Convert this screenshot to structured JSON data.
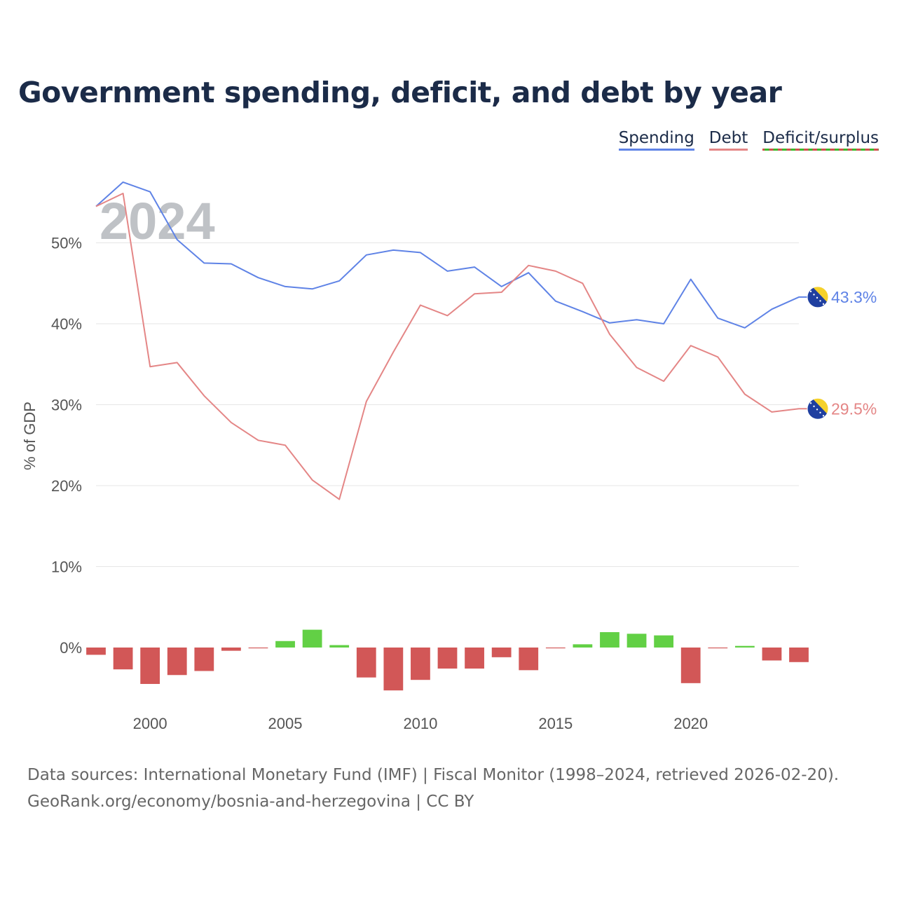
{
  "title": "Government spending, deficit, and debt by year",
  "legend": {
    "spending": "Spending",
    "debt": "Debt",
    "deficit": "Deficit/surplus"
  },
  "colors": {
    "spending": "#5f83e6",
    "debt": "#e48686",
    "surplus": "#62d045",
    "deficit": "#d25757",
    "title": "#1b2b48",
    "year_watermark": "#bfc2c6"
  },
  "chart_data": {
    "type": "line",
    "year_label": "2024",
    "ylabel": "% of GDP",
    "ylim": [
      -8,
      60
    ],
    "xlim": [
      1998,
      2024
    ],
    "x_ticks": [
      2000,
      2005,
      2010,
      2015,
      2020
    ],
    "y_ticks": [
      {
        "value": 0,
        "label": "0%"
      },
      {
        "value": 10,
        "label": "10%"
      },
      {
        "value": 20,
        "label": "20%"
      },
      {
        "value": 30,
        "label": "30%"
      },
      {
        "value": 40,
        "label": "40%"
      },
      {
        "value": 50,
        "label": "50%"
      }
    ],
    "x": [
      1998,
      1999,
      2000,
      2001,
      2002,
      2003,
      2004,
      2005,
      2006,
      2007,
      2008,
      2009,
      2010,
      2011,
      2012,
      2013,
      2014,
      2015,
      2016,
      2017,
      2018,
      2019,
      2020,
      2021,
      2022,
      2023,
      2024
    ],
    "series": [
      {
        "name": "Spending",
        "kind": "line",
        "values": [
          54.5,
          57.5,
          56.3,
          50.4,
          47.5,
          47.4,
          45.7,
          44.6,
          44.3,
          45.3,
          48.5,
          49.1,
          48.8,
          46.5,
          47.0,
          44.6,
          46.3,
          42.8,
          41.5,
          40.1,
          40.5,
          40.0,
          45.5,
          40.7,
          39.5,
          41.8,
          43.3
        ],
        "end_label": "43.3%"
      },
      {
        "name": "Debt",
        "kind": "line",
        "values": [
          54.5,
          56.1,
          34.7,
          35.2,
          31.1,
          27.8,
          25.6,
          25.0,
          20.7,
          18.3,
          30.4,
          36.5,
          42.3,
          41.0,
          43.7,
          43.9,
          47.2,
          46.5,
          45.0,
          38.7,
          34.6,
          32.9,
          37.3,
          35.9,
          31.3,
          29.1,
          29.5
        ],
        "end_label": "29.5%"
      },
      {
        "name": "Deficit/surplus",
        "kind": "bar",
        "values": [
          -0.9,
          -2.7,
          -4.5,
          -3.4,
          -2.9,
          -0.4,
          -0.1,
          0.8,
          2.2,
          0.3,
          -3.7,
          -5.3,
          -4.0,
          -2.6,
          -2.6,
          -1.2,
          -2.8,
          -0.1,
          0.4,
          1.9,
          1.7,
          1.5,
          -4.4,
          -0.1,
          0.2,
          -1.6,
          -1.8
        ]
      }
    ]
  },
  "footer": {
    "line1": "Data sources: International Monetary Fund (IMF) | Fiscal Monitor (1998–2024, retrieved 2026-02-20).",
    "line2": "GeoRank.org/economy/bosnia-and-herzegovina | CC BY"
  }
}
